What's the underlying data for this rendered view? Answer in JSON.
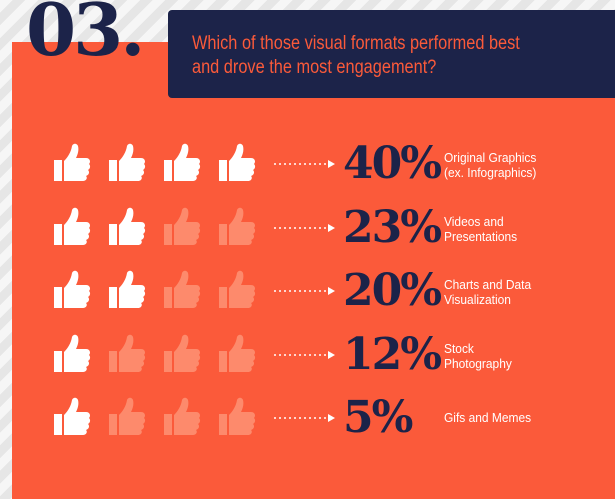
{
  "header": {
    "number": "03.",
    "question_line1": "Which of those visual formats performed best",
    "question_line2": "and drove the most engagement?"
  },
  "rows": [
    {
      "percent": "40%",
      "label_line1": "Original Graphics",
      "label_line2": "(ex. Infographics)",
      "filled_thumbs": 4
    },
    {
      "percent": "23%",
      "label_line1": "Videos and",
      "label_line2": "Presentations",
      "filled_thumbs": 2
    },
    {
      "percent": "20%",
      "label_line1": "Charts and Data",
      "label_line2": "Visualization",
      "filled_thumbs": 2
    },
    {
      "percent": "12%",
      "label_line1": "Stock",
      "label_line2": "Photography",
      "filled_thumbs": 1
    },
    {
      "percent": "5%",
      "label_line1": "Gifs and Memes",
      "label_line2": "",
      "filled_thumbs": 1
    }
  ],
  "icons": {
    "thumb": "thumbs-up-icon",
    "arrow": "dotted-arrow-icon"
  },
  "colors": {
    "background": "#fb5a3a",
    "navy": "#1c2349",
    "thumb_filled": "#ffffff",
    "thumb_faded": "#fd8a6c"
  }
}
